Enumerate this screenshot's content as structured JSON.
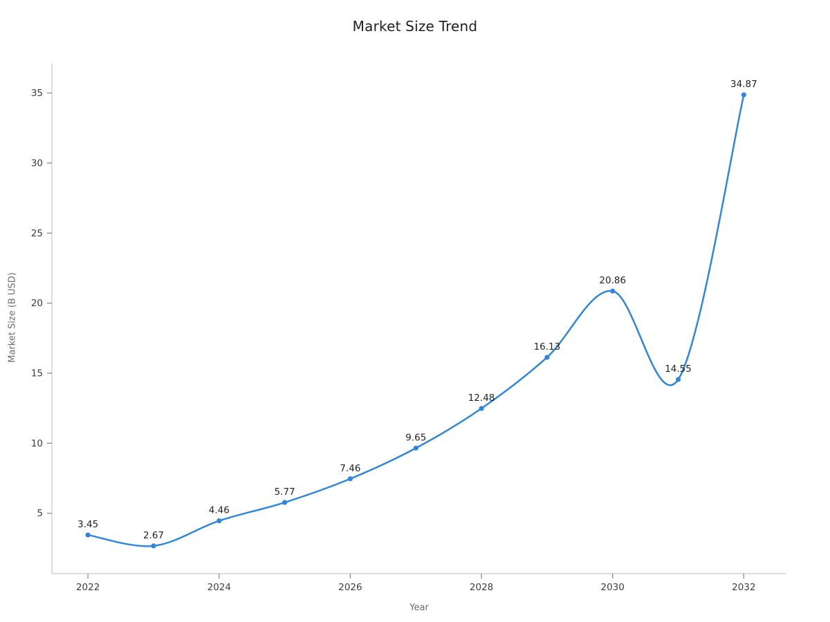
{
  "chart_data": {
    "type": "line",
    "title": "Market Size Trend",
    "xlabel": "Year",
    "ylabel": "Market Size (B USD)",
    "x": [
      2022,
      2023,
      2024,
      2025,
      2026,
      2027,
      2028,
      2029,
      2030,
      2031,
      2032
    ],
    "values": [
      3.45,
      2.67,
      4.46,
      5.77,
      7.46,
      9.65,
      12.48,
      16.13,
      20.86,
      14.55,
      34.87
    ],
    "point_labels": [
      "3.45",
      "2.67",
      "4.46",
      "5.77",
      "7.46",
      "9.65",
      "12.48",
      "16.13",
      "20.86",
      "14.55",
      "34.87"
    ],
    "xticks": [
      2022,
      2024,
      2026,
      2028,
      2030,
      2032
    ],
    "yticks": [
      5,
      10,
      15,
      20,
      25,
      30,
      35
    ],
    "xlim": [
      2021.45,
      2032.65
    ],
    "ylim": [
      0.69,
      37.1
    ],
    "grid": false,
    "legend": "none",
    "smooth": true,
    "line_color": "#2e86de",
    "marker_color": "#2e86de",
    "data_label_color": "#222222",
    "tick_label_color": "#3d3d3d",
    "axis_line_color": "#d2d2d2",
    "tick_mark_color": "#8a8a8a",
    "background_color": "#ffffff"
  }
}
